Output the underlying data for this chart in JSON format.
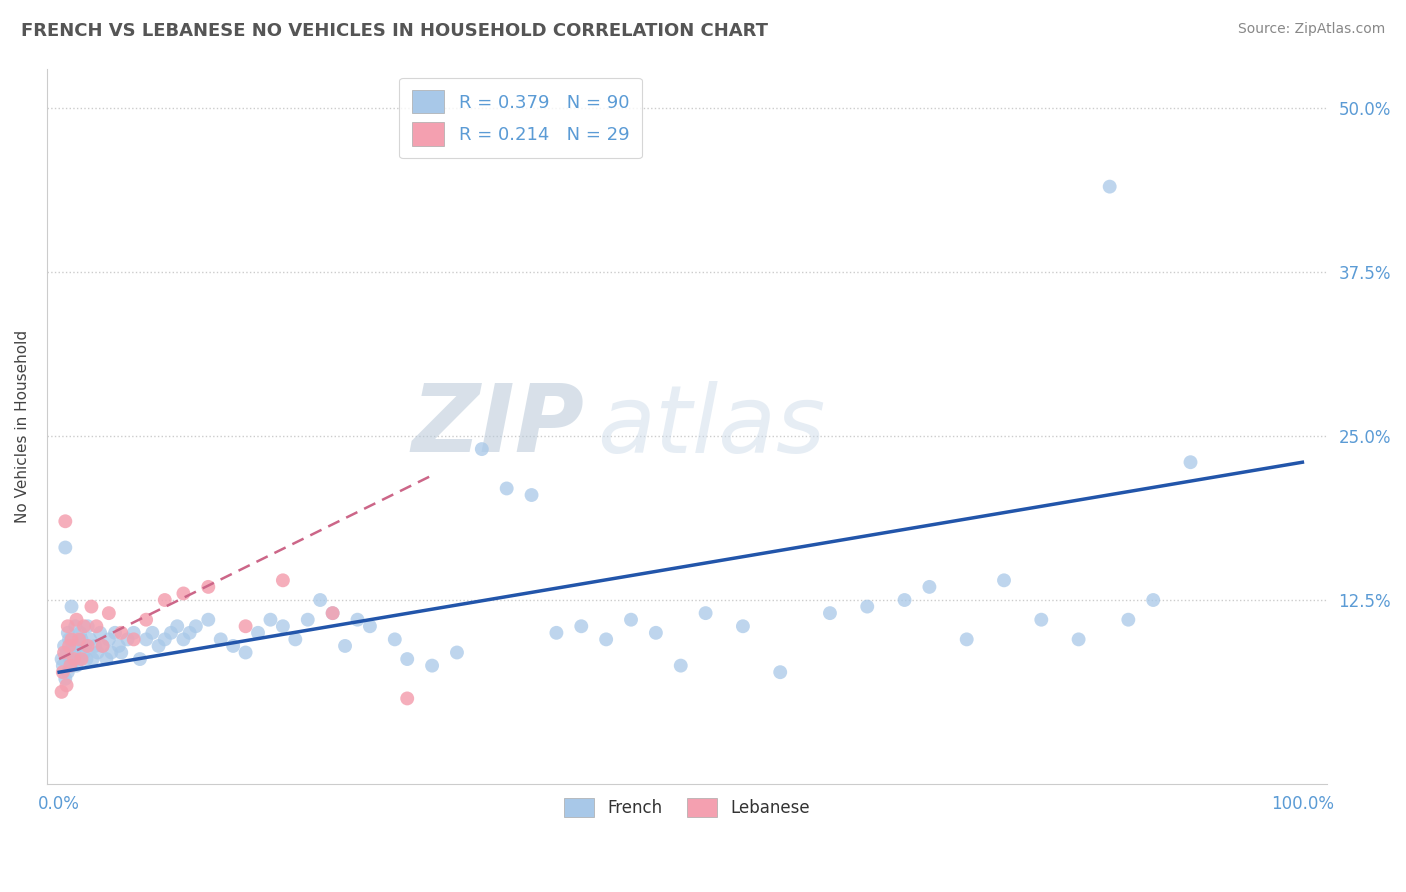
{
  "title": "FRENCH VS LEBANESE NO VEHICLES IN HOUSEHOLD CORRELATION CHART",
  "source": "Source: ZipAtlas.com",
  "ylabel": "No Vehicles in Household",
  "french_color": "#a8c8e8",
  "lebanese_color": "#f4a0b0",
  "french_line_color": "#2255aa",
  "lebanese_line_color": "#cc6688",
  "french_R": 0.379,
  "french_N": 90,
  "lebanese_R": 0.214,
  "lebanese_N": 29,
  "watermark_zip": "ZIP",
  "watermark_atlas": "atlas",
  "french_x": [
    0.2,
    0.3,
    0.4,
    0.5,
    0.5,
    0.6,
    0.7,
    0.7,
    0.8,
    0.9,
    1.0,
    1.0,
    1.1,
    1.2,
    1.3,
    1.4,
    1.5,
    1.6,
    1.7,
    1.8,
    2.0,
    2.1,
    2.2,
    2.3,
    2.5,
    2.7,
    2.9,
    3.1,
    3.3,
    3.5,
    3.8,
    4.0,
    4.2,
    4.5,
    4.8,
    5.0,
    5.5,
    6.0,
    6.5,
    7.0,
    7.5,
    8.0,
    8.5,
    9.0,
    9.5,
    10.0,
    10.5,
    11.0,
    12.0,
    13.0,
    14.0,
    15.0,
    16.0,
    17.0,
    18.0,
    19.0,
    20.0,
    21.0,
    22.0,
    23.0,
    24.0,
    25.0,
    27.0,
    28.0,
    30.0,
    32.0,
    34.0,
    36.0,
    38.0,
    40.0,
    42.0,
    44.0,
    46.0,
    48.0,
    50.0,
    52.0,
    55.0,
    58.0,
    62.0,
    65.0,
    68.0,
    70.0,
    73.0,
    76.0,
    79.0,
    82.0,
    84.5,
    86.0,
    88.0,
    91.0
  ],
  "french_y": [
    8.0,
    7.5,
    9.0,
    16.5,
    6.5,
    8.5,
    10.0,
    7.0,
    9.5,
    8.0,
    12.0,
    7.5,
    9.0,
    8.5,
    10.5,
    7.5,
    9.0,
    8.0,
    10.0,
    9.5,
    8.5,
    9.0,
    8.0,
    10.5,
    9.5,
    8.0,
    9.0,
    8.5,
    10.0,
    9.0,
    8.0,
    9.5,
    8.5,
    10.0,
    9.0,
    8.5,
    9.5,
    10.0,
    8.0,
    9.5,
    10.0,
    9.0,
    9.5,
    10.0,
    10.5,
    9.5,
    10.0,
    10.5,
    11.0,
    9.5,
    9.0,
    8.5,
    10.0,
    11.0,
    10.5,
    9.5,
    11.0,
    12.5,
    11.5,
    9.0,
    11.0,
    10.5,
    9.5,
    8.0,
    7.5,
    8.5,
    24.0,
    21.0,
    20.5,
    10.0,
    10.5,
    9.5,
    11.0,
    10.0,
    7.5,
    11.5,
    10.5,
    7.0,
    11.5,
    12.0,
    12.5,
    13.5,
    9.5,
    14.0,
    11.0,
    9.5,
    44.0,
    11.0,
    12.5,
    23.0
  ],
  "lebanese_x": [
    0.2,
    0.3,
    0.4,
    0.5,
    0.6,
    0.7,
    0.8,
    0.9,
    1.0,
    1.2,
    1.4,
    1.6,
    1.8,
    2.0,
    2.3,
    2.6,
    3.0,
    3.5,
    4.0,
    5.0,
    6.0,
    7.0,
    8.5,
    10.0,
    12.0,
    15.0,
    18.0,
    22.0,
    28.0
  ],
  "lebanese_y": [
    5.5,
    7.0,
    8.5,
    18.5,
    6.0,
    10.5,
    9.0,
    7.5,
    9.5,
    8.0,
    11.0,
    9.5,
    8.0,
    10.5,
    9.0,
    12.0,
    10.5,
    9.0,
    11.5,
    10.0,
    9.5,
    11.0,
    12.5,
    13.0,
    13.5,
    10.5,
    14.0,
    11.5,
    5.0
  ],
  "french_line_x0": 0,
  "french_line_x1": 100,
  "french_line_y0": 7.0,
  "french_line_y1": 23.0,
  "lebanese_line_x0": 0,
  "lebanese_line_x1": 30,
  "lebanese_line_y0": 8.0,
  "lebanese_line_y1": 22.0,
  "xlim": [
    -1,
    102
  ],
  "ylim": [
    -1.5,
    53
  ],
  "ytick_vals": [
    12.5,
    25.0,
    37.5,
    50.0
  ],
  "ytick_labels": [
    "12.5%",
    "25.0%",
    "37.5%",
    "50.0%"
  ],
  "xtick_vals": [
    0,
    100
  ],
  "xtick_labels": [
    "0.0%",
    "100.0%"
  ]
}
